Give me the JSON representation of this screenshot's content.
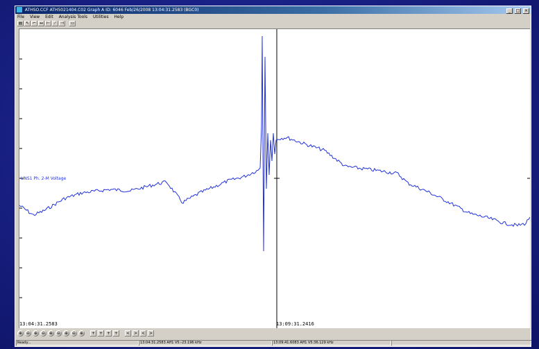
{
  "window": {
    "title": "ATHSO.CCF ATH5021404.C02 Graph A ID: 6046 Feb/26/2008 13:04:31.2583 (BGC0)",
    "controls": [
      "_",
      "□",
      "×"
    ]
  },
  "menu": {
    "items": [
      "File",
      "View",
      "Edit",
      "Analysis Tools",
      "Utilities",
      "Help"
    ]
  },
  "plot": {
    "series_label": "UNS1 Ph. 2-M Voltage",
    "start_time": "13:04:31.2583",
    "cursor_time": "13:09:31.2416",
    "trace_color": "#2030e0"
  },
  "navbar": {
    "buttons": [
      "⊕",
      "⊖",
      "⊕",
      "⊖",
      "⊕",
      "⊖",
      "⊕",
      "⊖",
      "⊕",
      "+",
      "+",
      "+",
      "+",
      "<",
      ">",
      "<",
      ">"
    ]
  },
  "status": {
    "ready": "Ready...",
    "pane1": "13:04:31.2583 Aff1 V5:-23.196 kHz",
    "pane2": "13:09:41.6083 Aff1 V5:36.129 kHz"
  }
}
